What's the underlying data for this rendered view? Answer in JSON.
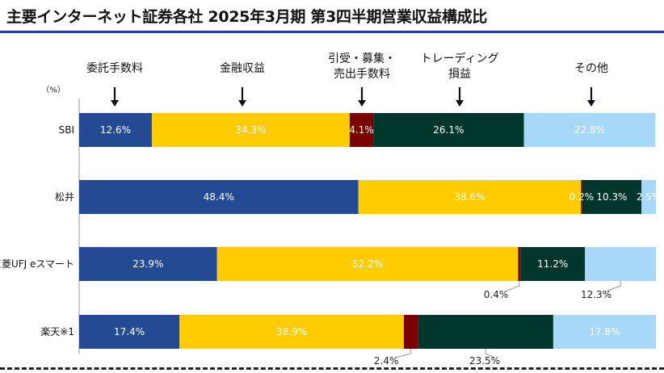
{
  "title": "主要インターネット証券各社 2025年3月期 第3四半期営業収益構成比",
  "chart_data": {
    "type": "bar",
    "orientation": "horizontal",
    "stacked": true,
    "unit_label": "（%）",
    "xlim": [
      0,
      100
    ],
    "categories": [
      "SBI",
      "松井",
      "三菱UFJ eスマート",
      "楽天※1"
    ],
    "series": [
      {
        "name": "委託手数料",
        "color": "#234a93",
        "values": [
          12.6,
          48.4,
          23.9,
          17.4
        ],
        "labels": [
          "12.6%",
          "48.4%",
          "23.9%",
          "17.4%"
        ]
      },
      {
        "name": "金融収益",
        "color": "#ffcc00",
        "values": [
          34.3,
          38.6,
          52.2,
          38.9
        ],
        "labels": [
          "34.3%",
          "38.6%",
          "52.2%",
          "38.9%"
        ]
      },
      {
        "name": "引受・募集・売出手数料",
        "color": "#7a0000",
        "values": [
          4.1,
          0.2,
          0.4,
          2.4
        ],
        "labels": [
          "4.1%",
          "0.2%",
          "0.4%",
          "2.4%"
        ]
      },
      {
        "name": "トレーディング損益",
        "color": "#00362b",
        "values": [
          26.1,
          10.3,
          11.2,
          23.5
        ],
        "labels": [
          "26.1%",
          "10.3%",
          "11.2%",
          "23.5%"
        ]
      },
      {
        "name": "その他",
        "color": "#a8d8f8",
        "values": [
          22.8,
          2.5,
          12.3,
          17.8
        ],
        "labels": [
          "22.8%",
          "2.5%",
          "12.3%",
          "17.8%"
        ]
      }
    ],
    "legend": [
      "委託手数料",
      "金融収益",
      "引受・募集・\n売出手数料",
      "トレーディング\n損益",
      "その他"
    ],
    "grid": false
  }
}
